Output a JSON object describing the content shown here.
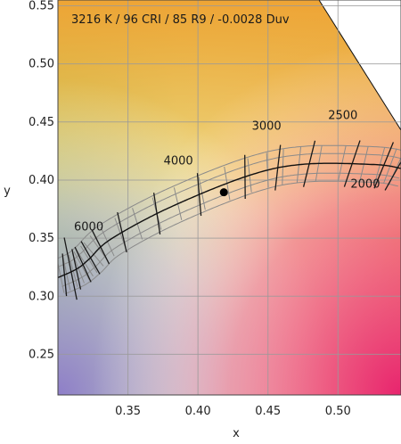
{
  "chart_data": {
    "type": "scatter",
    "title": "3216 K / 96 CRI / 85 R9 / -0.0028 Duv",
    "xlabel": "x",
    "ylabel": "y",
    "xlim": [
      0.3,
      0.545
    ],
    "ylim": [
      0.215,
      0.555
    ],
    "x_ticks": [
      "0.35",
      "0.40",
      "0.45",
      "0.50"
    ],
    "y_ticks": [
      "0.55",
      "0.50",
      "0.45",
      "0.40",
      "0.35",
      "0.30",
      "0.25"
    ],
    "grid": true,
    "planckian_locus": {
      "x": [
        0.3,
        0.3135,
        0.3221,
        0.338,
        0.3805,
        0.4369,
        0.4764,
        0.5267,
        0.545
      ],
      "y": [
        0.316,
        0.3235,
        0.3318,
        0.3493,
        0.3768,
        0.4041,
        0.4137,
        0.4133,
        0.41
      ]
    },
    "cct_labels": [
      {
        "text": "6000",
        "x": 0.322,
        "y": 0.3565
      },
      {
        "text": "4000",
        "x": 0.386,
        "y": 0.4135
      },
      {
        "text": "3000",
        "x": 0.449,
        "y": 0.4435
      },
      {
        "text": "2500",
        "x": 0.5035,
        "y": 0.4525
      },
      {
        "text": "2000",
        "x": 0.5195,
        "y": 0.3935
      }
    ],
    "measurement_point": {
      "x": 0.4185,
      "y": 0.3895
    }
  }
}
